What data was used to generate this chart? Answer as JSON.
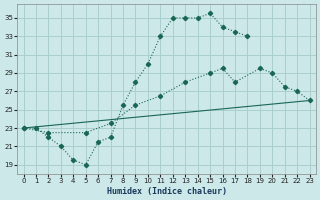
{
  "xlabel": "Humidex (Indice chaleur)",
  "bg_color": "#cce8e8",
  "grid_color": "#aacece",
  "line_color": "#1a6655",
  "xlim": [
    -0.5,
    23.5
  ],
  "ylim": [
    18,
    36.5
  ],
  "yticks": [
    19,
    21,
    23,
    25,
    27,
    29,
    31,
    33,
    35
  ],
  "xticks": [
    0,
    1,
    2,
    3,
    4,
    5,
    6,
    7,
    8,
    9,
    10,
    11,
    12,
    13,
    14,
    15,
    16,
    17,
    18,
    19,
    20,
    21,
    22,
    23
  ],
  "line1_x": [
    0,
    1,
    2,
    3,
    4,
    5,
    6,
    7,
    8,
    9,
    10,
    11,
    12,
    13,
    14,
    15,
    16,
    17,
    18
  ],
  "line1_y": [
    23,
    23,
    22,
    21,
    19.5,
    19,
    21.5,
    22,
    25.5,
    28,
    30,
    33,
    35,
    35,
    35,
    35.5,
    34,
    33.5,
    33
  ],
  "line2_x": [
    0,
    2,
    5,
    7,
    9,
    11,
    13,
    15,
    16,
    17,
    19,
    20,
    21,
    22,
    23
  ],
  "line2_y": [
    23,
    22.5,
    22.5,
    23.5,
    25.5,
    26.5,
    28,
    29,
    29.5,
    28,
    29.5,
    29,
    27.5,
    27,
    26
  ],
  "line3_x": [
    0,
    23
  ],
  "line3_y": [
    23,
    26
  ]
}
